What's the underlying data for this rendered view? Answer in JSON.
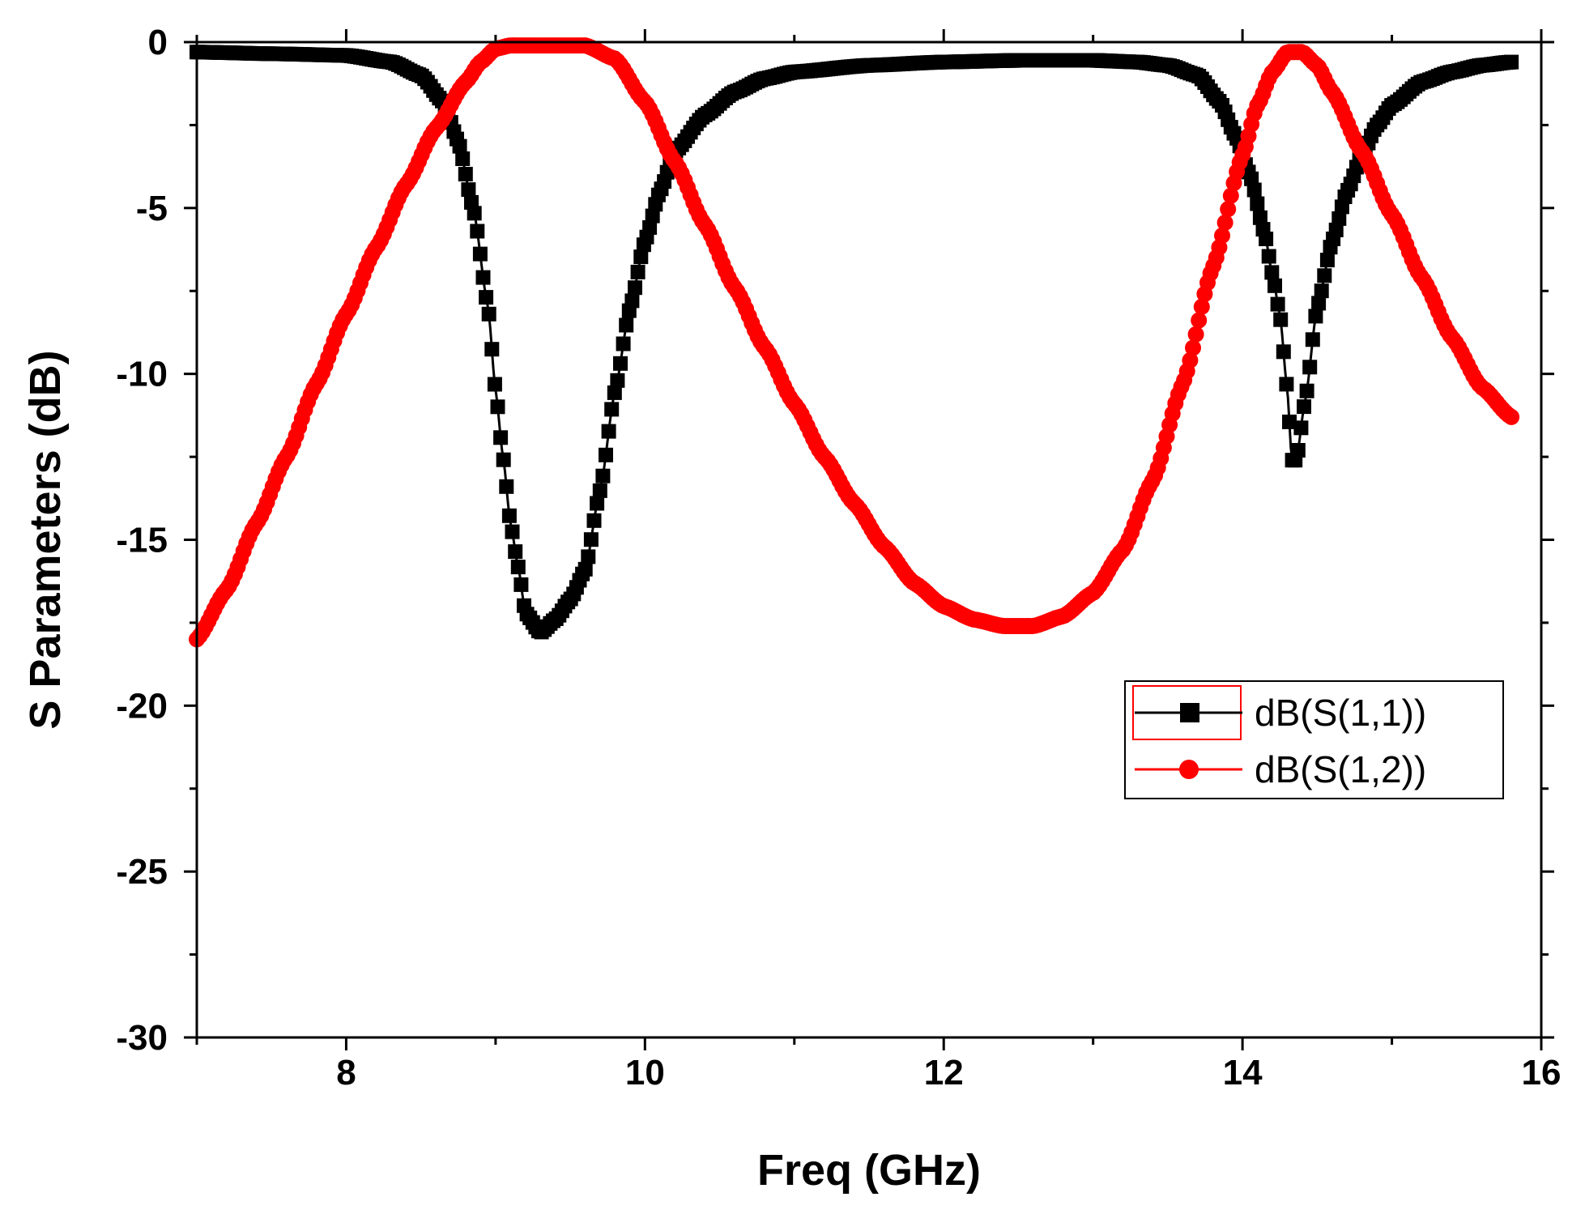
{
  "chart_data": {
    "type": "line",
    "title": "",
    "xlabel": "Freq (GHz)",
    "ylabel": "S Parameters (dB)",
    "xlim": [
      7,
      16
    ],
    "ylim": [
      -30,
      0
    ],
    "x_ticks": [
      8,
      10,
      12,
      14,
      16
    ],
    "x_tick_labels": [
      "8",
      "10",
      "12",
      "14",
      "16"
    ],
    "y_ticks": [
      0,
      -5,
      -10,
      -15,
      -20,
      -25,
      -30
    ],
    "y_tick_labels": [
      "0",
      "-5",
      "-10",
      "-15",
      "-20",
      "-25",
      "-30"
    ],
    "legend_position": "right",
    "series": [
      {
        "name": "dB(S(1,1))",
        "color": "#000000",
        "marker": "square",
        "x": [
          7.0,
          7.5,
          8.0,
          8.3,
          8.5,
          8.65,
          8.75,
          8.85,
          8.95,
          9.0,
          9.05,
          9.1,
          9.15,
          9.2,
          9.3,
          9.4,
          9.5,
          9.6,
          9.7,
          9.8,
          9.9,
          10.0,
          10.1,
          10.2,
          10.4,
          10.6,
          10.8,
          11.0,
          11.5,
          12.0,
          12.5,
          13.0,
          13.3,
          13.5,
          13.7,
          13.85,
          13.95,
          14.05,
          14.15,
          14.2,
          14.25,
          14.3,
          14.33,
          14.36,
          14.42,
          14.5,
          14.6,
          14.7,
          14.8,
          14.9,
          15.0,
          15.2,
          15.4,
          15.6,
          15.8
        ],
        "y": [
          -0.3,
          -0.35,
          -0.4,
          -0.6,
          -1.0,
          -1.8,
          -3.0,
          -5.0,
          -8.0,
          -10.5,
          -12.5,
          -14.5,
          -15.8,
          -17.2,
          -17.8,
          -17.4,
          -16.8,
          -15.9,
          -13.5,
          -10.5,
          -8.0,
          -6.0,
          -4.5,
          -3.3,
          -2.2,
          -1.5,
          -1.1,
          -0.9,
          -0.7,
          -0.6,
          -0.55,
          -0.55,
          -0.6,
          -0.7,
          -1.0,
          -1.8,
          -2.8,
          -4.0,
          -5.8,
          -7.0,
          -8.2,
          -10.5,
          -12.6,
          -12.6,
          -10.8,
          -8.0,
          -6.0,
          -4.5,
          -3.4,
          -2.5,
          -1.9,
          -1.2,
          -0.9,
          -0.7,
          -0.6
        ]
      },
      {
        "name": "dB(S(1,2))",
        "color": "#ff0000",
        "marker": "circle",
        "x": [
          7.0,
          7.2,
          7.4,
          7.6,
          7.8,
          8.0,
          8.2,
          8.4,
          8.6,
          8.8,
          8.9,
          9.0,
          9.1,
          9.2,
          9.4,
          9.6,
          9.8,
          10.0,
          10.2,
          10.4,
          10.6,
          10.8,
          11.0,
          11.2,
          11.4,
          11.6,
          11.8,
          12.0,
          12.2,
          12.4,
          12.6,
          12.8,
          13.0,
          13.2,
          13.4,
          13.6,
          13.8,
          14.0,
          14.1,
          14.2,
          14.3,
          14.4,
          14.5,
          14.6,
          14.8,
          15.0,
          15.2,
          15.4,
          15.6,
          15.8
        ],
        "y": [
          -18.0,
          -16.5,
          -14.5,
          -12.5,
          -10.3,
          -8.2,
          -6.2,
          -4.3,
          -2.6,
          -1.2,
          -0.6,
          -0.2,
          -0.1,
          -0.1,
          -0.1,
          -0.1,
          -0.5,
          -1.8,
          -3.6,
          -5.5,
          -7.4,
          -9.2,
          -10.9,
          -12.5,
          -13.9,
          -15.2,
          -16.3,
          -17.0,
          -17.4,
          -17.6,
          -17.6,
          -17.3,
          -16.6,
          -15.3,
          -13.2,
          -10.3,
          -6.8,
          -3.4,
          -1.9,
          -0.9,
          -0.3,
          -0.3,
          -0.7,
          -1.5,
          -3.3,
          -5.2,
          -7.1,
          -8.9,
          -10.4,
          -11.3
        ]
      }
    ]
  }
}
